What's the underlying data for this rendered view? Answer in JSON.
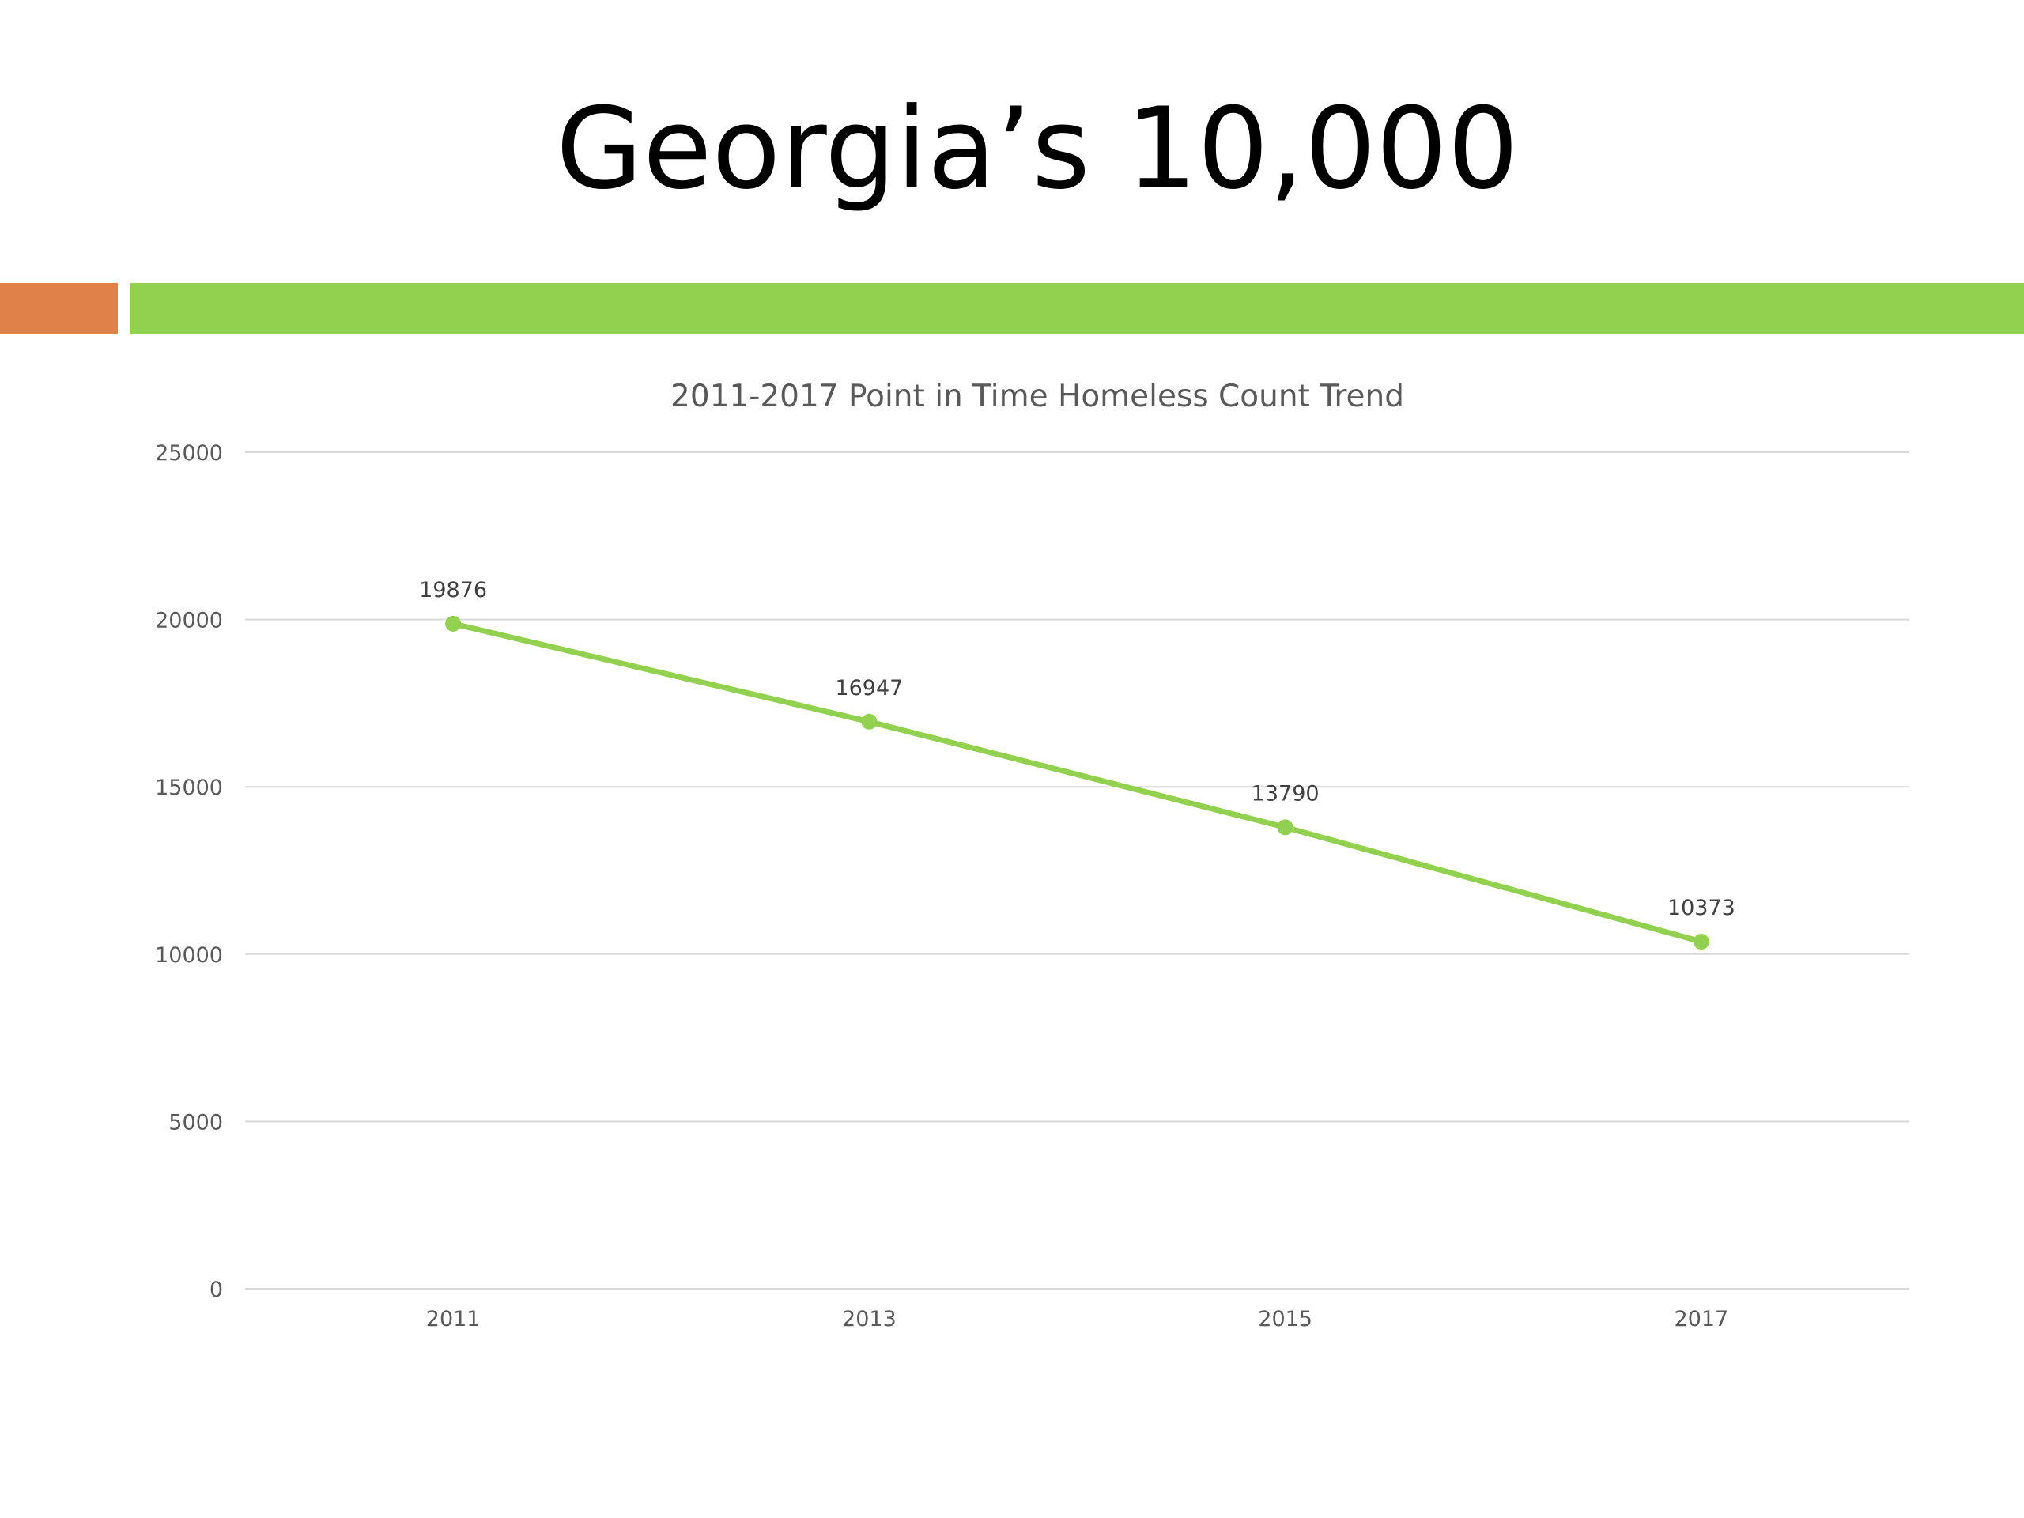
{
  "slide": {
    "title": "Georgia’s 10,000"
  },
  "colors": {
    "accent_orange": "#E0814A",
    "accent_green": "#92D050",
    "series_line": "#92D050",
    "gridline": "#D9D9D9",
    "axis_text": "#595959"
  },
  "chart_data": {
    "type": "line",
    "title": "2011-2017 Point in Time Homeless Count Trend",
    "categories": [
      "2011",
      "2013",
      "2015",
      "2017"
    ],
    "series": [
      {
        "values": [
          19876,
          16947,
          13790,
          10373
        ]
      }
    ],
    "data_labels": [
      "19876",
      "16947",
      "13790",
      "10373"
    ],
    "ylim": [
      0,
      25000
    ],
    "yticks": [
      "0",
      "5000",
      "10000",
      "15000",
      "20000",
      "25000"
    ],
    "grid": true,
    "legend": "none"
  }
}
